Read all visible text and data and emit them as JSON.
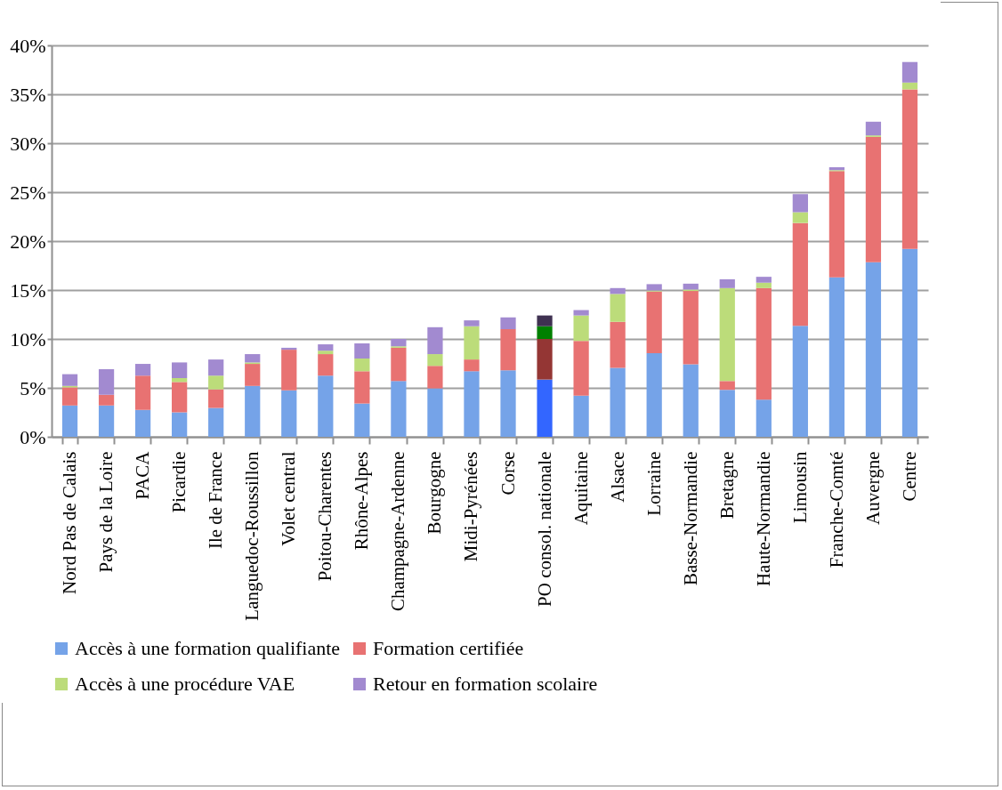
{
  "chart_data": {
    "type": "bar",
    "stacked": true,
    "categories": [
      "Nord Pas de Calais",
      "Pays de la Loire",
      "PACA",
      "Picardie",
      "Ile de France",
      "Languedoc-Roussillon",
      "Volet central",
      "Poitou-Charentes",
      "Rhône-Alpes",
      "Champagne-Ardenne",
      "Bourgogne",
      "Midi-Pyrénées",
      "Corse",
      "PO consol. nationale",
      "Aquitaine",
      "Alsace",
      "Lorraine",
      "Basse-Normandie",
      "Bretagne",
      "Haute-Normandie",
      "Limousin",
      "Franche-Comté",
      "Auvergne",
      "Centre"
    ],
    "series": [
      {
        "name": "Accès à une formation qualifiante",
        "color": "#75a3e8",
        "colors": [
          "#75a3e8",
          "#75a3e8",
          "#75a3e8",
          "#75a3e8",
          "#75a3e8",
          "#75a3e8",
          "#75a3e8",
          "#75a3e8",
          "#75a3e8",
          "#75a3e8",
          "#75a3e8",
          "#75a3e8",
          "#75a3e8",
          "#3366ff",
          "#75a3e8",
          "#75a3e8",
          "#75a3e8",
          "#75a3e8",
          "#75a3e8",
          "#75a3e8",
          "#75a3e8",
          "#75a3e8",
          "#75a3e8",
          "#75a3e8"
        ],
        "values": [
          3.2,
          3.2,
          2.75,
          2.5,
          2.95,
          5.2,
          4.75,
          6.25,
          3.4,
          5.7,
          4.95,
          6.7,
          6.8,
          5.85,
          4.2,
          7.05,
          8.55,
          7.4,
          4.8,
          3.8,
          11.35,
          16.3,
          17.85,
          19.2
        ]
      },
      {
        "name": "Formation certifiée",
        "color": "#e87272",
        "colors": [
          "#e87272",
          "#e87272",
          "#e87272",
          "#e87272",
          "#e87272",
          "#e87272",
          "#e87272",
          "#e87272",
          "#e87272",
          "#e87272",
          "#e87272",
          "#e87272",
          "#e87272",
          "#943634",
          "#e87272",
          "#e87272",
          "#e87272",
          "#e87272",
          "#e87272",
          "#e87272",
          "#e87272",
          "#e87272",
          "#e87272",
          "#e87272"
        ],
        "values": [
          1.85,
          1.1,
          3.5,
          3.1,
          1.9,
          2.25,
          4.15,
          2.2,
          3.3,
          3.4,
          2.3,
          1.2,
          4.2,
          4.15,
          5.6,
          4.7,
          6.3,
          7.5,
          0.9,
          11.4,
          10.5,
          10.85,
          12.8,
          16.3
        ]
      },
      {
        "name": "Accès à une procédure VAE",
        "color": "#bcdc7a",
        "colors": [
          "#bcdc7a",
          "#bcdc7a",
          "#bcdc7a",
          "#bcdc7a",
          "#bcdc7a",
          "#bcdc7a",
          "#bcdc7a",
          "#bcdc7a",
          "#bcdc7a",
          "#bcdc7a",
          "#bcdc7a",
          "#bcdc7a",
          "#bcdc7a",
          "#008000",
          "#bcdc7a",
          "#bcdc7a",
          "#bcdc7a",
          "#bcdc7a",
          "#bcdc7a",
          "#bcdc7a",
          "#bcdc7a",
          "#bcdc7a",
          "#bcdc7a",
          "#bcdc7a"
        ],
        "values": [
          0.15,
          0,
          0,
          0.4,
          1.4,
          0.15,
          0,
          0.35,
          1.3,
          0.15,
          1.2,
          3.4,
          0,
          1.3,
          2.6,
          2.85,
          0.1,
          0.15,
          9.5,
          0.55,
          1.1,
          0.1,
          0.15,
          0.7
        ]
      },
      {
        "name": "Retour en formation scolaire",
        "color": "#a28ad0",
        "colors": [
          "#a28ad0",
          "#a28ad0",
          "#a28ad0",
          "#a28ad0",
          "#a28ad0",
          "#a28ad0",
          "#a28ad0",
          "#a28ad0",
          "#a28ad0",
          "#a28ad0",
          "#a28ad0",
          "#a28ad0",
          "#a28ad0",
          "#3f3151",
          "#a28ad0",
          "#a28ad0",
          "#a28ad0",
          "#a28ad0",
          "#a28ad0",
          "#a28ad0",
          "#a28ad0",
          "#a28ad0",
          "#a28ad0",
          "#a28ad0"
        ],
        "values": [
          1.2,
          2.6,
          1.2,
          1.6,
          1.65,
          0.85,
          0.2,
          0.65,
          1.55,
          0.75,
          2.75,
          0.6,
          1.2,
          1.1,
          0.55,
          0.6,
          0.65,
          0.6,
          0.9,
          0.6,
          1.85,
          0.3,
          1.4,
          2.1
        ]
      }
    ],
    "ylim": [
      0,
      40
    ],
    "yticks": [
      {
        "value": 0,
        "label": "0%"
      },
      {
        "value": 5,
        "label": "5%"
      },
      {
        "value": 10,
        "label": "10%"
      },
      {
        "value": 15,
        "label": "15%"
      },
      {
        "value": 20,
        "label": "20%"
      },
      {
        "value": 25,
        "label": "25%"
      },
      {
        "value": 30,
        "label": "30%"
      },
      {
        "value": 35,
        "label": "35%"
      },
      {
        "value": 40,
        "label": "40%"
      }
    ],
    "grid": "y",
    "legend": "bottom"
  }
}
